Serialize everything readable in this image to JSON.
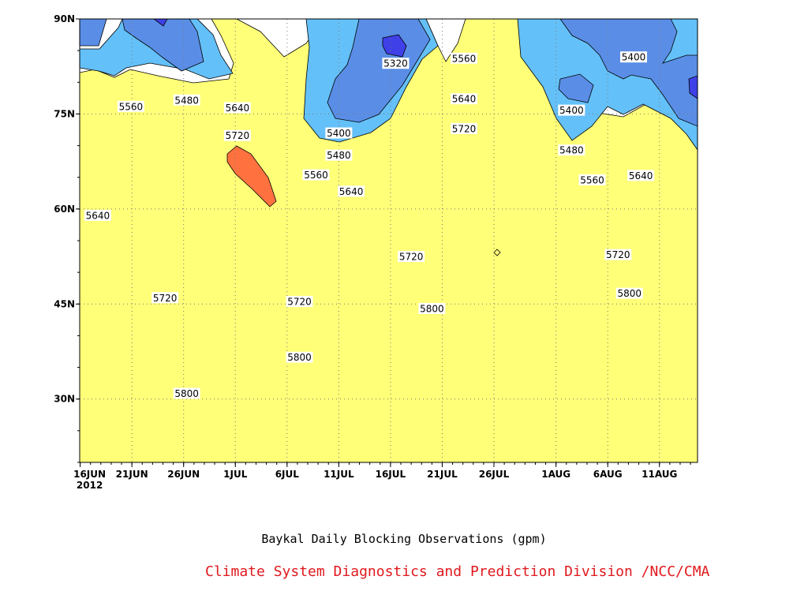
{
  "chart_data": {
    "type": "heatmap",
    "title": "Baykal Daily Blocking Observations (gpm)",
    "credit": "Climate System Diagnostics and Prediction Division /NCC/CMA",
    "xlabel": "",
    "ylabel": "",
    "x_range": [
      "2012-06-16",
      "2012-08-14"
    ],
    "ylim": [
      20,
      90
    ],
    "grid": true,
    "yticks": [
      {
        "value": 30,
        "label": "30N"
      },
      {
        "value": 45,
        "label": "45N"
      },
      {
        "value": 60,
        "label": "60N"
      },
      {
        "value": 75,
        "label": "75N"
      },
      {
        "value": 90,
        "label": "90N"
      }
    ],
    "xticks": [
      {
        "day": 0,
        "label": "16JUN",
        "sublabel": "2012"
      },
      {
        "day": 5,
        "label": "21JUN"
      },
      {
        "day": 10,
        "label": "26JUN"
      },
      {
        "day": 15,
        "label": "1JUL"
      },
      {
        "day": 20,
        "label": "6JUL"
      },
      {
        "day": 25,
        "label": "11JUL"
      },
      {
        "day": 30,
        "label": "16JUL"
      },
      {
        "day": 35,
        "label": "21JUL"
      },
      {
        "day": 40,
        "label": "26JUL"
      },
      {
        "day": 46,
        "label": "1AUG"
      },
      {
        "day": 51,
        "label": "6AUG"
      },
      {
        "day": 56,
        "label": "11AUG"
      }
    ],
    "contour_levels": [
      5320,
      5400,
      5480,
      5560,
      5640,
      5720,
      5800
    ],
    "level_colors": {
      "below_5320": "#4040e8",
      "5320_5400": "#5a8ee6",
      "5400_5480": "#64c0f8",
      "5480_5560": "#ffff78",
      "5560_5640": "#ffdc96",
      "5640_5720": "#ffa064",
      "5720_5800": "#ff7240",
      "above_5800": "#f56e7a"
    },
    "contour_labels": [
      {
        "text": "5320",
        "day": 30.5,
        "lat": 83
      },
      {
        "text": "5400",
        "day": 25.0,
        "lat": 72
      },
      {
        "text": "5480",
        "day": 25.0,
        "lat": 68.5
      },
      {
        "text": "5560",
        "day": 22.8,
        "lat": 65.4
      },
      {
        "text": "5640",
        "day": 26.2,
        "lat": 62.8
      },
      {
        "text": "5560",
        "day": 4.9,
        "lat": 76.2
      },
      {
        "text": "5480",
        "day": 10.3,
        "lat": 77.2
      },
      {
        "text": "5640",
        "day": 15.2,
        "lat": 76.0
      },
      {
        "text": "5720",
        "day": 15.2,
        "lat": 71.6
      },
      {
        "text": "5640",
        "day": 1.7,
        "lat": 59.0
      },
      {
        "text": "5720",
        "day": 8.2,
        "lat": 46.0
      },
      {
        "text": "5720",
        "day": 21.2,
        "lat": 45.4
      },
      {
        "text": "5800",
        "day": 10.3,
        "lat": 30.9
      },
      {
        "text": "5800",
        "day": 21.2,
        "lat": 36.6
      },
      {
        "text": "5720",
        "day": 32.0,
        "lat": 52.5
      },
      {
        "text": "5800",
        "day": 34.0,
        "lat": 44.3
      },
      {
        "text": "5560",
        "day": 37.1,
        "lat": 83.8
      },
      {
        "text": "5640",
        "day": 37.1,
        "lat": 77.4
      },
      {
        "text": "5720",
        "day": 37.1,
        "lat": 72.7
      },
      {
        "text": "5400",
        "day": 47.5,
        "lat": 75.6
      },
      {
        "text": "5480",
        "day": 47.5,
        "lat": 69.3
      },
      {
        "text": "5560",
        "day": 49.5,
        "lat": 64.6
      },
      {
        "text": "5400",
        "day": 53.5,
        "lat": 84.0
      },
      {
        "text": "5640",
        "day": 54.2,
        "lat": 65.3
      },
      {
        "text": "5720",
        "day": 52.0,
        "lat": 52.8
      },
      {
        "text": "5800",
        "day": 53.1,
        "lat": 46.7
      }
    ]
  }
}
